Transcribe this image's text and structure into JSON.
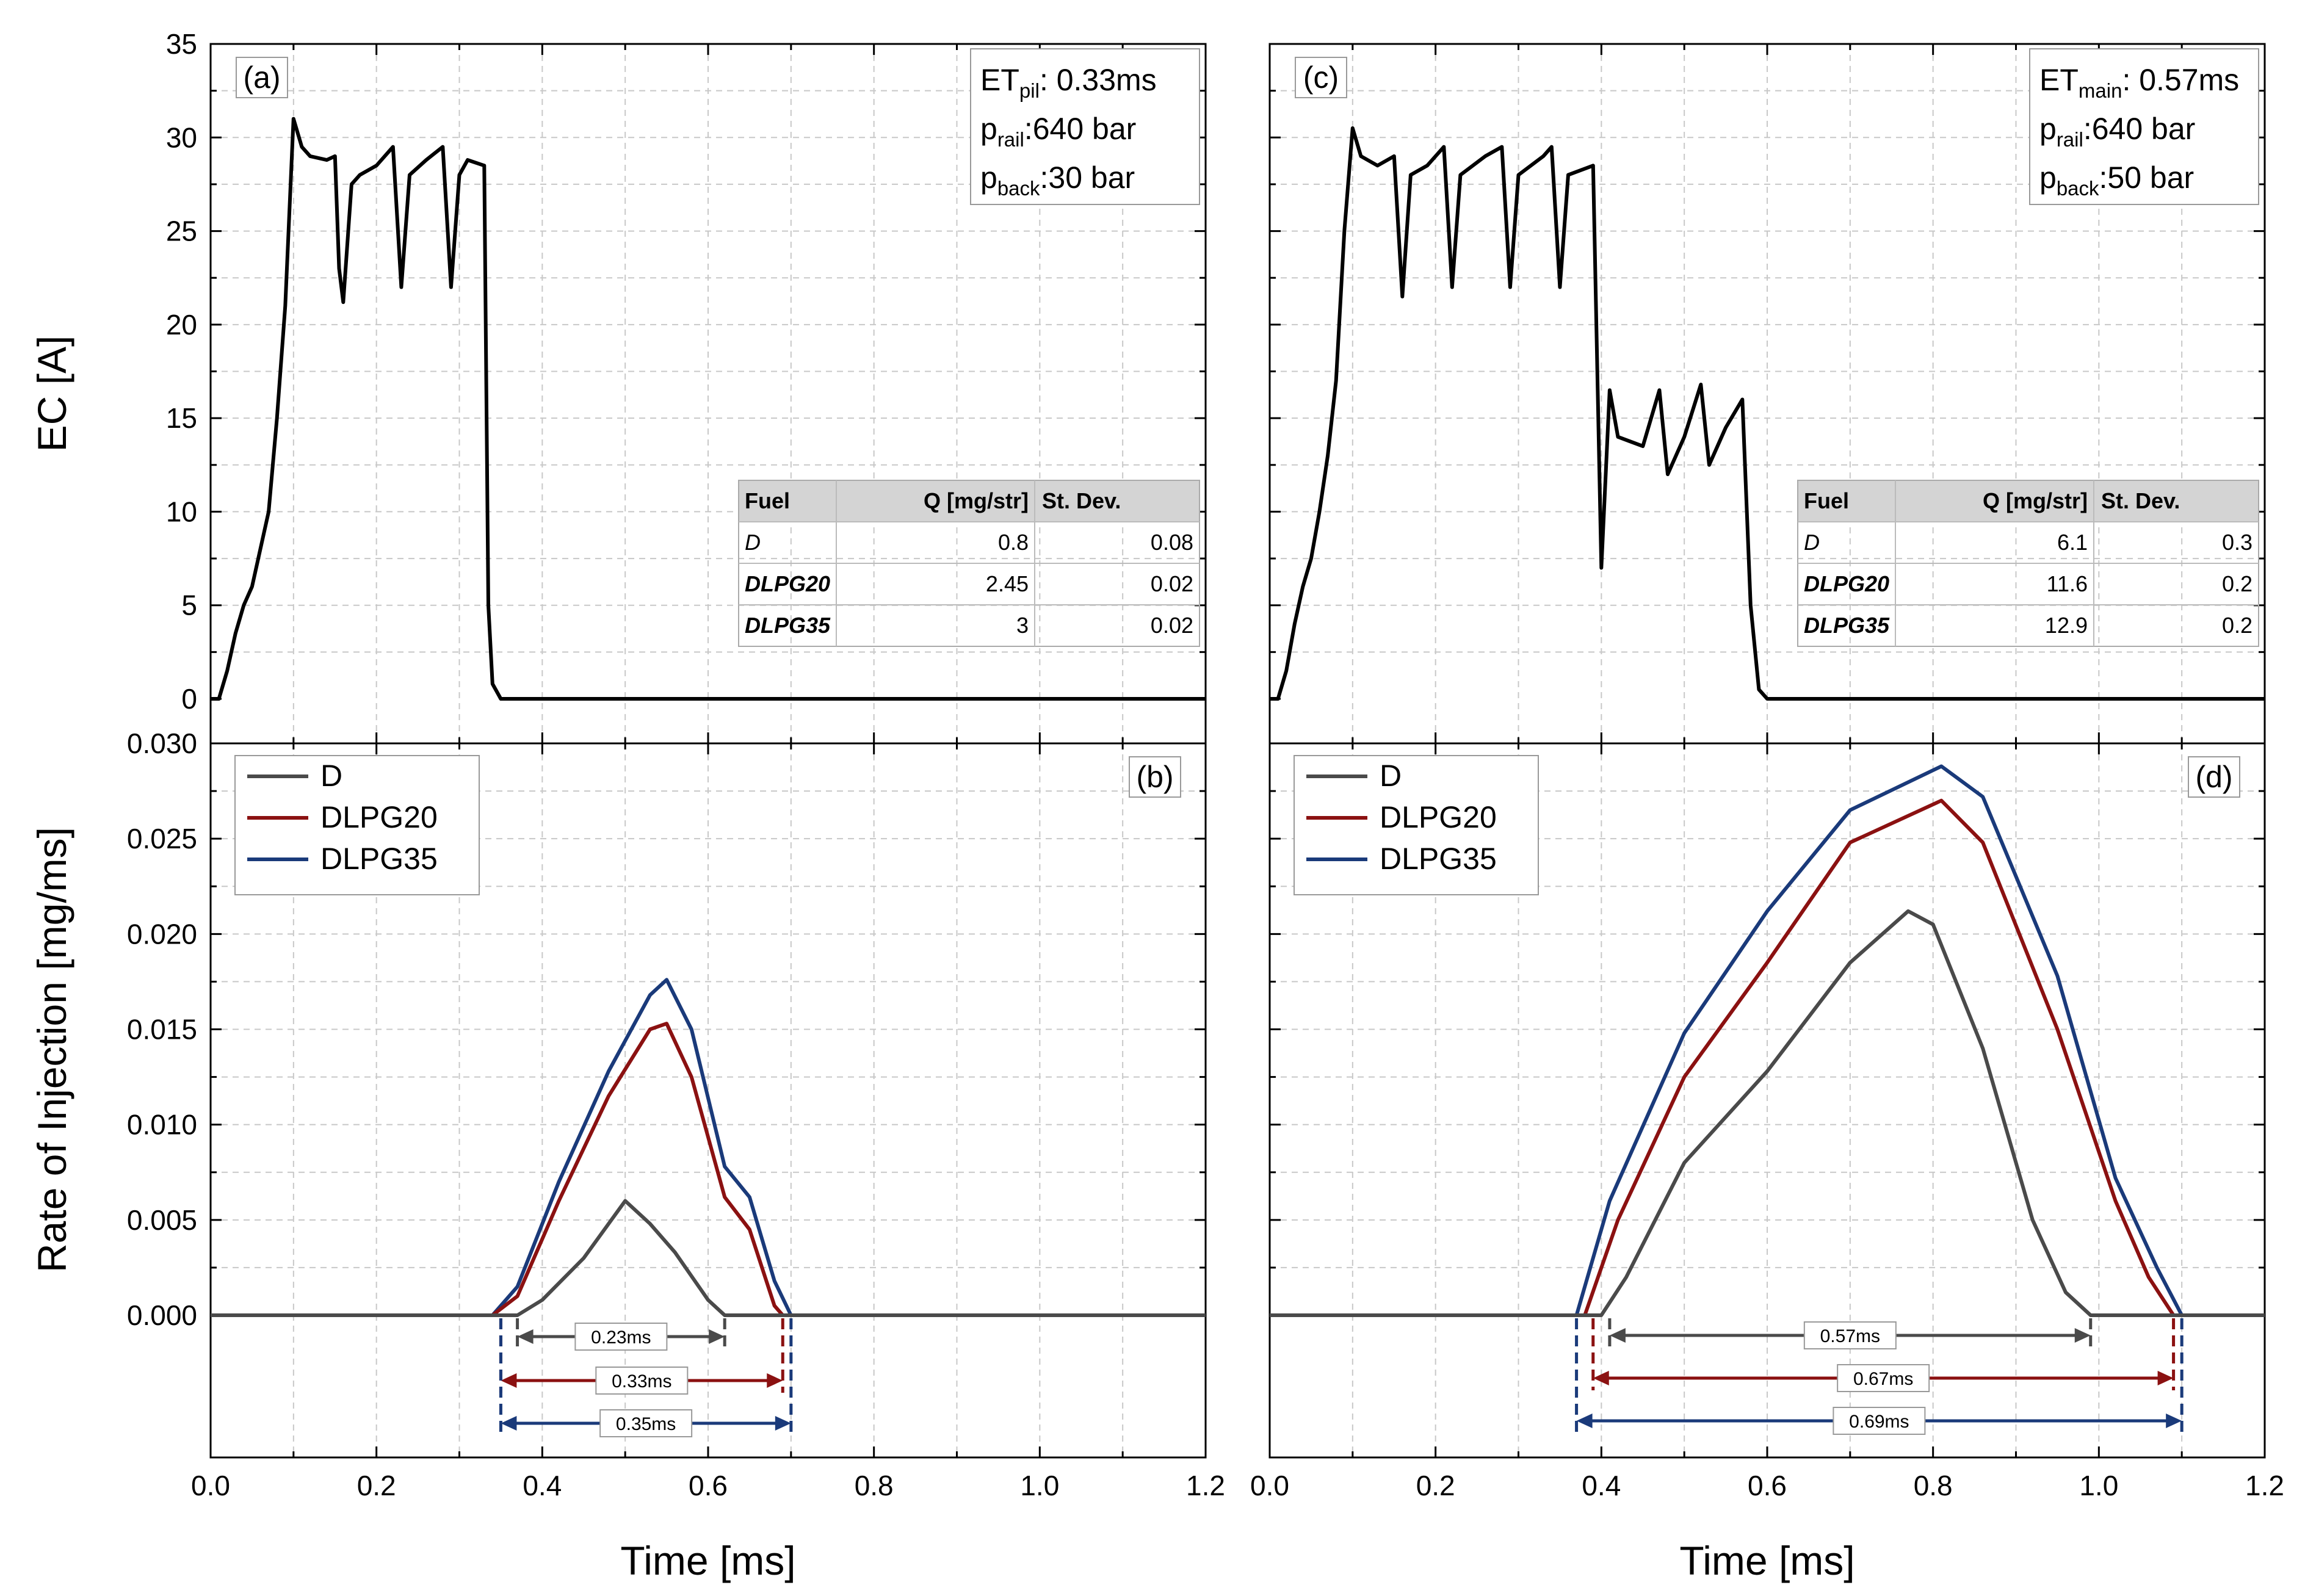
{
  "colors": {
    "D": "#4a4a4a",
    "DLPG20": "#8b1111",
    "DLPG35": "#1a3a7a",
    "grid": "#c8c8c8",
    "table_header": "#d4d4d4"
  },
  "axes": {
    "x_label": "Time [ms]",
    "y_top_label": "EC [A]",
    "y_bottom_label": "Rate of Injection [mg/ms]",
    "x_ticks": [
      "0.0",
      "0.2",
      "0.4",
      "0.6",
      "0.8",
      "1.0",
      "1.2"
    ],
    "y_top_ticks": [
      "0",
      "5",
      "10",
      "15",
      "20",
      "25",
      "30",
      "35"
    ],
    "y_bottom_ticks": [
      "0.000",
      "0.005",
      "0.010",
      "0.015",
      "0.020",
      "0.025",
      "0.030"
    ]
  },
  "legend": [
    "D",
    "DLPG20",
    "DLPG35"
  ],
  "table_header": {
    "fuel": "Fuel",
    "q": "Q [mg/str]",
    "sd": "St. Dev."
  },
  "panels": {
    "a": {
      "letter": "(a)",
      "info": {
        "et_main": "ET",
        "et_sub": "pil",
        "et_value": ": 0.33ms",
        "prail_main": "p",
        "prail_sub": "rail",
        "prail_value": ":640 bar",
        "pback_main": "p",
        "pback_sub": "back",
        "pback_value": ":30 bar"
      },
      "table": [
        {
          "fuel": "D",
          "q": "0.8",
          "sd": "0.08"
        },
        {
          "fuel": "DLPG20",
          "q": "2.45",
          "sd": "0.02"
        },
        {
          "fuel": "DLPG35",
          "q": "3",
          "sd": "0.02"
        }
      ]
    },
    "b": {
      "letter": "(b)",
      "arrows": [
        "0.23ms",
        "0.33ms",
        "0.35ms"
      ]
    },
    "c": {
      "letter": "(c)",
      "info": {
        "et_main": "ET",
        "et_sub": "main",
        "et_value": ": 0.57ms",
        "prail_main": "p",
        "prail_sub": "rail",
        "prail_value": ":640 bar",
        "pback_main": "p",
        "pback_sub": "back",
        "pback_value": ":50 bar"
      },
      "table": [
        {
          "fuel": "D",
          "q": "6.1",
          "sd": "0.3"
        },
        {
          "fuel": "DLPG20",
          "q": "11.6",
          "sd": "0.2"
        },
        {
          "fuel": "DLPG35",
          "q": "12.9",
          "sd": "0.2"
        }
      ]
    },
    "d": {
      "letter": "(d)",
      "arrows": [
        "0.57ms",
        "0.67ms",
        "0.69ms"
      ]
    }
  },
  "chart_data": [
    {
      "panel": "a",
      "type": "line",
      "xlabel": "",
      "ylabel": "EC [A]",
      "xlim": [
        0,
        1.2
      ],
      "ylim": [
        0,
        35
      ],
      "series": [
        {
          "color": "#000000",
          "points": [
            [
              0,
              0
            ],
            [
              0.01,
              0
            ],
            [
              0.02,
              1.5
            ],
            [
              0.03,
              3.5
            ],
            [
              0.04,
              5
            ],
            [
              0.05,
              6
            ],
            [
              0.06,
              8
            ],
            [
              0.07,
              10
            ],
            [
              0.08,
              15
            ],
            [
              0.09,
              21
            ],
            [
              0.1,
              31
            ],
            [
              0.11,
              29.5
            ],
            [
              0.12,
              29
            ],
            [
              0.14,
              28.8
            ],
            [
              0.15,
              29
            ],
            [
              0.155,
              23
            ],
            [
              0.16,
              21.2
            ],
            [
              0.17,
              27.5
            ],
            [
              0.18,
              28
            ],
            [
              0.2,
              28.5
            ],
            [
              0.22,
              29.5
            ],
            [
              0.23,
              22
            ],
            [
              0.24,
              28
            ],
            [
              0.26,
              28.8
            ],
            [
              0.28,
              29.5
            ],
            [
              0.29,
              22
            ],
            [
              0.3,
              28
            ],
            [
              0.31,
              28.8
            ],
            [
              0.33,
              28.5
            ],
            [
              0.335,
              5
            ],
            [
              0.34,
              0.8
            ],
            [
              0.35,
              0
            ],
            [
              1.2,
              0
            ]
          ]
        }
      ]
    },
    {
      "panel": "b",
      "type": "line",
      "xlabel": "Time [ms]",
      "ylabel": "Rate of Injection [mg/ms]",
      "xlim": [
        0,
        1.2
      ],
      "ylim": [
        0,
        0.03
      ],
      "series": [
        {
          "name": "D",
          "points": [
            [
              0,
              0
            ],
            [
              0.37,
              0
            ],
            [
              0.4,
              0.0008
            ],
            [
              0.45,
              0.003
            ],
            [
              0.5,
              0.006
            ],
            [
              0.53,
              0.0048
            ],
            [
              0.56,
              0.0033
            ],
            [
              0.6,
              0.0008
            ],
            [
              0.62,
              0
            ],
            [
              1.2,
              0
            ]
          ]
        },
        {
          "name": "DLPG20",
          "points": [
            [
              0,
              0
            ],
            [
              0.34,
              0
            ],
            [
              0.37,
              0.001
            ],
            [
              0.42,
              0.006
            ],
            [
              0.48,
              0.0115
            ],
            [
              0.53,
              0.015
            ],
            [
              0.55,
              0.0153
            ],
            [
              0.58,
              0.0125
            ],
            [
              0.62,
              0.0062
            ],
            [
              0.65,
              0.0045
            ],
            [
              0.68,
              0.0005
            ],
            [
              0.69,
              0
            ],
            [
              1.2,
              0
            ]
          ]
        },
        {
          "name": "DLPG35",
          "points": [
            [
              0,
              0
            ],
            [
              0.34,
              0
            ],
            [
              0.37,
              0.0015
            ],
            [
              0.42,
              0.007
            ],
            [
              0.48,
              0.0128
            ],
            [
              0.53,
              0.0168
            ],
            [
              0.55,
              0.0176
            ],
            [
              0.58,
              0.015
            ],
            [
              0.62,
              0.0078
            ],
            [
              0.65,
              0.0062
            ],
            [
              0.68,
              0.0018
            ],
            [
              0.7,
              0
            ],
            [
              1.2,
              0
            ]
          ]
        }
      ]
    },
    {
      "panel": "c",
      "type": "line",
      "xlabel": "",
      "ylabel": "",
      "xlim": [
        0,
        1.2
      ],
      "ylim": [
        0,
        35
      ],
      "series": [
        {
          "color": "#000000",
          "points": [
            [
              0,
              0
            ],
            [
              0.01,
              0
            ],
            [
              0.02,
              1.5
            ],
            [
              0.03,
              4
            ],
            [
              0.04,
              6
            ],
            [
              0.05,
              7.5
            ],
            [
              0.06,
              10
            ],
            [
              0.07,
              13
            ],
            [
              0.08,
              17
            ],
            [
              0.09,
              25
            ],
            [
              0.1,
              30.5
            ],
            [
              0.11,
              29
            ],
            [
              0.13,
              28.5
            ],
            [
              0.15,
              29
            ],
            [
              0.16,
              21.5
            ],
            [
              0.17,
              28
            ],
            [
              0.19,
              28.5
            ],
            [
              0.21,
              29.5
            ],
            [
              0.22,
              22
            ],
            [
              0.23,
              28
            ],
            [
              0.26,
              29
            ],
            [
              0.28,
              29.5
            ],
            [
              0.29,
              22
            ],
            [
              0.3,
              28
            ],
            [
              0.33,
              29
            ],
            [
              0.34,
              29.5
            ],
            [
              0.35,
              22
            ],
            [
              0.36,
              28
            ],
            [
              0.39,
              28.5
            ],
            [
              0.4,
              7
            ],
            [
              0.41,
              16.5
            ],
            [
              0.42,
              14
            ],
            [
              0.45,
              13.5
            ],
            [
              0.47,
              16.5
            ],
            [
              0.48,
              12
            ],
            [
              0.5,
              14
            ],
            [
              0.52,
              16.8
            ],
            [
              0.53,
              12.5
            ],
            [
              0.55,
              14.5
            ],
            [
              0.57,
              16
            ],
            [
              0.58,
              5
            ],
            [
              0.59,
              0.5
            ],
            [
              0.6,
              0
            ],
            [
              1.2,
              0
            ]
          ]
        }
      ]
    },
    {
      "panel": "d",
      "type": "line",
      "xlabel": "Time [ms]",
      "ylabel": "",
      "xlim": [
        0,
        1.2
      ],
      "ylim": [
        0,
        0.03
      ],
      "series": [
        {
          "name": "D",
          "points": [
            [
              0,
              0
            ],
            [
              0.4,
              0
            ],
            [
              0.43,
              0.002
            ],
            [
              0.5,
              0.008
            ],
            [
              0.6,
              0.0128
            ],
            [
              0.7,
              0.0185
            ],
            [
              0.77,
              0.0212
            ],
            [
              0.8,
              0.0205
            ],
            [
              0.86,
              0.014
            ],
            [
              0.92,
              0.005
            ],
            [
              0.96,
              0.0012
            ],
            [
              0.99,
              0
            ],
            [
              1.2,
              0
            ]
          ]
        },
        {
          "name": "DLPG20",
          "points": [
            [
              0,
              0
            ],
            [
              0.38,
              0
            ],
            [
              0.42,
              0.005
            ],
            [
              0.5,
              0.0125
            ],
            [
              0.6,
              0.0185
            ],
            [
              0.7,
              0.0248
            ],
            [
              0.81,
              0.027
            ],
            [
              0.86,
              0.0248
            ],
            [
              0.95,
              0.015
            ],
            [
              1.02,
              0.006
            ],
            [
              1.06,
              0.002
            ],
            [
              1.09,
              0
            ],
            [
              1.2,
              0
            ]
          ]
        },
        {
          "name": "DLPG35",
          "points": [
            [
              0,
              0
            ],
            [
              0.37,
              0
            ],
            [
              0.41,
              0.006
            ],
            [
              0.5,
              0.0148
            ],
            [
              0.6,
              0.0212
            ],
            [
              0.7,
              0.0265
            ],
            [
              0.81,
              0.0288
            ],
            [
              0.86,
              0.0272
            ],
            [
              0.95,
              0.0178
            ],
            [
              1.02,
              0.0072
            ],
            [
              1.07,
              0.0025
            ],
            [
              1.1,
              0
            ],
            [
              1.2,
              0
            ]
          ]
        }
      ]
    }
  ]
}
